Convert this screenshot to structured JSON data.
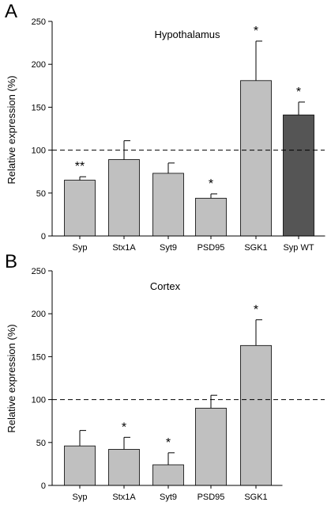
{
  "chart_data": [
    {
      "type": "bar",
      "panel_label": "A",
      "title": "Hypothalamus",
      "ylabel": "Relative expression (%)",
      "xlabel": "",
      "ylim": [
        0,
        250
      ],
      "yticks": [
        0,
        50,
        100,
        150,
        200,
        250
      ],
      "reference_line": 100,
      "categories": [
        "Syp",
        "Stx1A",
        "Syt9",
        "PSD95",
        "SGK1",
        "Syp WT"
      ],
      "values": [
        65,
        89,
        73,
        44,
        181,
        141
      ],
      "errors": [
        4,
        22,
        12,
        5,
        46,
        15
      ],
      "significance": [
        "**",
        "",
        "",
        "*",
        "*",
        "*"
      ],
      "bar_colors": [
        "#c0c0c0",
        "#c0c0c0",
        "#c0c0c0",
        "#c0c0c0",
        "#c0c0c0",
        "#555555"
      ],
      "grid": false
    },
    {
      "type": "bar",
      "panel_label": "B",
      "title": "Cortex",
      "ylabel": "Relative expression (%)",
      "xlabel": "",
      "ylim": [
        0,
        250
      ],
      "yticks": [
        0,
        50,
        100,
        150,
        200,
        250
      ],
      "reference_line": 100,
      "categories": [
        "Syp",
        "Stx1A",
        "Syt9",
        "PSD95",
        "SGK1"
      ],
      "values": [
        46,
        42,
        24,
        90,
        163
      ],
      "errors": [
        18,
        14,
        14,
        15,
        30
      ],
      "significance": [
        "",
        "*",
        "*",
        "",
        "*"
      ],
      "bar_colors": [
        "#c0c0c0",
        "#c0c0c0",
        "#c0c0c0",
        "#c0c0c0",
        "#c0c0c0"
      ],
      "grid": false
    }
  ]
}
